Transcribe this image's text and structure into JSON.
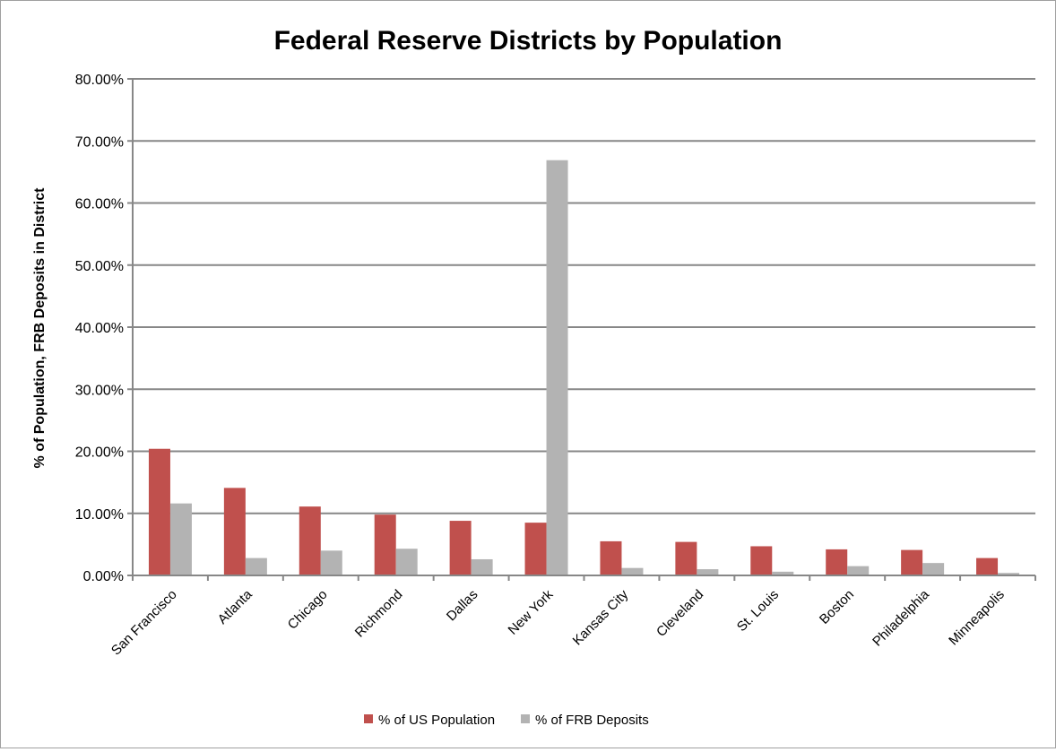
{
  "chart_data": {
    "type": "bar",
    "title": "Federal Reserve Districts by Population",
    "xlabel": "",
    "ylabel": "% of Population, FRB Deposits in District",
    "ylim": [
      0,
      80
    ],
    "yticks": [
      "0.00%",
      "10.00%",
      "20.00%",
      "30.00%",
      "40.00%",
      "50.00%",
      "60.00%",
      "70.00%",
      "80.00%"
    ],
    "grid": true,
    "legend_position": "bottom",
    "categories": [
      "San Francisco",
      "Atlanta",
      "Chicago",
      "Richmond",
      "Dallas",
      "New York",
      "Kansas City",
      "Cleveland",
      "St. Louis",
      "Boston",
      "Philadelphia",
      "Minneapolis"
    ],
    "series": [
      {
        "name": "% of US Population",
        "color": "#c0504d",
        "values": [
          20.4,
          14.1,
          11.1,
          9.8,
          8.8,
          8.5,
          5.5,
          5.4,
          4.7,
          4.2,
          4.1,
          2.8
        ]
      },
      {
        "name": "% of FRB Deposits",
        "color": "#b3b3b3",
        "values": [
          11.6,
          2.8,
          4.0,
          4.3,
          2.6,
          66.9,
          1.2,
          1.0,
          0.6,
          1.5,
          2.0,
          0.4
        ]
      }
    ]
  }
}
